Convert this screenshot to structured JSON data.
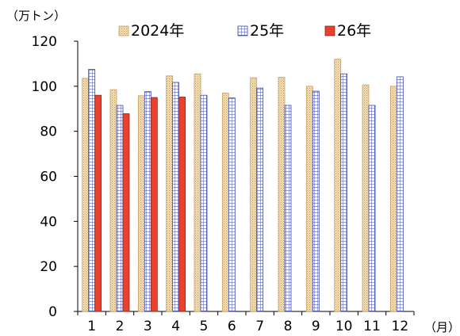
{
  "chart_data": {
    "type": "bar",
    "y_unit_label": "（万トン）",
    "x_unit_label": "（月）",
    "categories": [
      "1",
      "2",
      "3",
      "4",
      "5",
      "6",
      "7",
      "8",
      "9",
      "10",
      "11",
      "12"
    ],
    "series": [
      {
        "name": "2024年",
        "style": "dotted",
        "color": "#f3d9a6",
        "stroke": "#c9a060",
        "values": [
          103.5,
          98.5,
          95.8,
          104.6,
          105.5,
          97.0,
          103.8,
          104.0,
          100.0,
          112.0,
          100.6,
          100.0
        ]
      },
      {
        "name": "25年",
        "style": "grid",
        "color": "#ffffff",
        "stroke": "#3b46a8",
        "values": [
          107.5,
          91.5,
          97.6,
          101.7,
          96.0,
          94.8,
          99.2,
          91.5,
          97.8,
          105.5,
          91.5,
          104.2
        ]
      },
      {
        "name": "26年",
        "style": "solid",
        "color": "#e8412d",
        "stroke": "#8a2418",
        "values": [
          96.0,
          87.8,
          95.0,
          95.2,
          null,
          null,
          null,
          null,
          null,
          null,
          null,
          null
        ]
      }
    ],
    "yticks": [
      0,
      20,
      40,
      60,
      80,
      100,
      120
    ],
    "ylim": [
      0,
      120
    ],
    "grid": false,
    "legend_position": "top"
  }
}
